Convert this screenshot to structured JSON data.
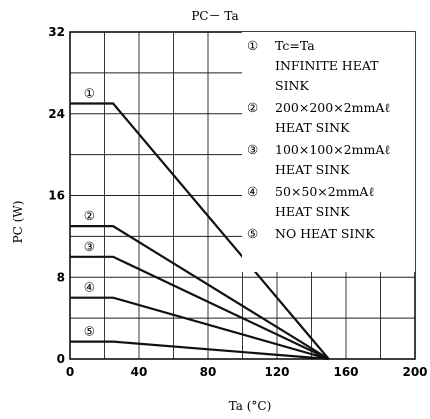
{
  "chart_data": {
    "type": "line",
    "title": "PC－ Ta",
    "xlabel": "Ta (°C)",
    "ylabel": "PC (W)",
    "xlim": [
      0,
      200
    ],
    "ylim": [
      0,
      32
    ],
    "x_ticks": [
      "0",
      "40",
      "80",
      "120",
      "160",
      "200"
    ],
    "y_ticks": [
      "0",
      "8",
      "16",
      "24",
      "32"
    ],
    "grid": true,
    "legend_position": "top-right",
    "series": [
      {
        "name": "Tc=Ta INFINITE HEAT SINK",
        "marker": "①",
        "x": [
          0,
          25,
          150
        ],
        "y": [
          25,
          25,
          0
        ]
      },
      {
        "name": "200×200×2mmAℓ HEAT SINK",
        "marker": "②",
        "x": [
          0,
          25,
          150
        ],
        "y": [
          13,
          13,
          0
        ]
      },
      {
        "name": "100×100×2mmAℓ HEAT SINK",
        "marker": "③",
        "x": [
          0,
          25,
          150
        ],
        "y": [
          10,
          10,
          0
        ]
      },
      {
        "name": "50×50×2mmAℓ HEAT SINK",
        "marker": "④",
        "x": [
          0,
          25,
          150
        ],
        "y": [
          6,
          6,
          0
        ]
      },
      {
        "name": "NO HEAT SINK",
        "marker": "⑤",
        "x": [
          0,
          25,
          150
        ],
        "y": [
          1.7,
          1.7,
          0
        ]
      }
    ],
    "legend_entries": [
      {
        "marker": "①",
        "line1": "Tc=Ta",
        "line2": "INFINITE HEAT",
        "line3": "SINK"
      },
      {
        "marker": "②",
        "line1": "200×200×2mmAℓ",
        "line2": "HEAT SINK"
      },
      {
        "marker": "③",
        "line1": "100×100×2mmAℓ",
        "line2": "HEAT SINK"
      },
      {
        "marker": "④",
        "line1": "50×50×2mmAℓ",
        "line2": "HEAT SINK"
      },
      {
        "marker": "⑤",
        "line1": "NO HEAT SINK"
      }
    ]
  }
}
